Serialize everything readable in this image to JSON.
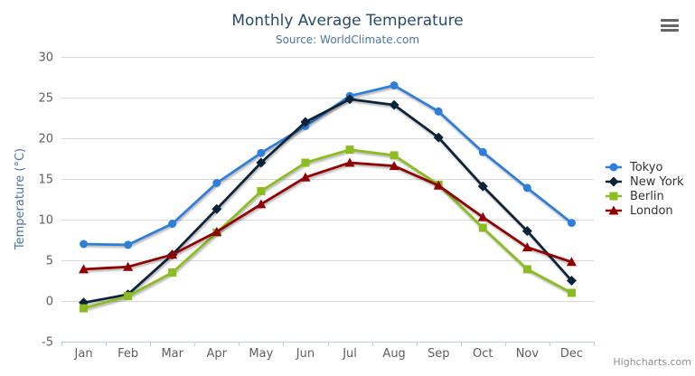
{
  "chart_data": {
    "type": "line",
    "title": "Monthly Average Temperature",
    "subtitle": "Source: WorldClimate.com",
    "categories": [
      "Jan",
      "Feb",
      "Mar",
      "Apr",
      "May",
      "Jun",
      "Jul",
      "Aug",
      "Sep",
      "Oct",
      "Nov",
      "Dec"
    ],
    "xlabel": "",
    "ylabel": "Temperature (°C)",
    "ylim": [
      -5,
      30
    ],
    "ytick_interval": 5,
    "grid": true,
    "legend_position": "right",
    "series": [
      {
        "name": "Tokyo",
        "color": "#2f7ed8",
        "marker": "circle",
        "values": [
          7.0,
          6.9,
          9.5,
          14.5,
          18.2,
          21.5,
          25.2,
          26.5,
          23.3,
          18.3,
          13.9,
          9.6
        ]
      },
      {
        "name": "New York",
        "color": "#0d233a",
        "marker": "diamond",
        "values": [
          -0.2,
          0.8,
          5.7,
          11.3,
          17.0,
          22.0,
          24.8,
          24.1,
          20.1,
          14.1,
          8.6,
          2.5
        ]
      },
      {
        "name": "Berlin",
        "color": "#8bbc21",
        "marker": "square",
        "values": [
          -0.9,
          0.6,
          3.5,
          8.4,
          13.5,
          17.0,
          18.6,
          17.9,
          14.3,
          9.0,
          3.9,
          1.0
        ]
      },
      {
        "name": "London",
        "color": "#910000",
        "marker": "triangle",
        "values": [
          3.9,
          4.2,
          5.7,
          8.5,
          11.9,
          15.2,
          17.0,
          16.6,
          14.2,
          10.3,
          6.6,
          4.8
        ]
      }
    ]
  },
  "export_menu": {
    "icon": "hamburger-menu-icon"
  },
  "credits": {
    "label": "Highcharts.com"
  },
  "colors": {
    "title": "#274b6d",
    "subtitle": "#4d759e",
    "axis_labels": "#606060",
    "axis_title": "#4d759e",
    "grid": "#d8d8d8",
    "axis_line": "#c0d0e0",
    "legend_text": "#333333",
    "credits_text": "#909090",
    "menu_icon": "#666666"
  }
}
